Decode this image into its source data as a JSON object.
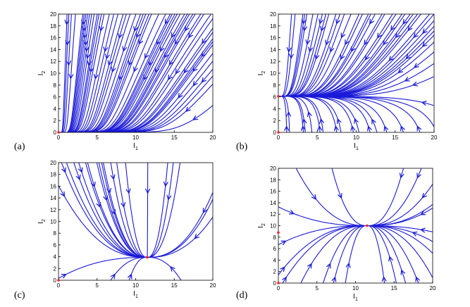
{
  "figure": {
    "panels": [
      {
        "tag": "(a)"
      },
      {
        "tag": "(b)"
      },
      {
        "tag": "(c)"
      },
      {
        "tag": "(d)"
      }
    ]
  },
  "colors": {
    "streamline": "#1a1ad8",
    "equilibrium": "#ff2020",
    "axis": "#000000"
  },
  "chart_data": [
    {
      "type": "streamplot",
      "panel": "(a)",
      "xlabel": "I1",
      "ylabel": "I2",
      "xlim": [
        0,
        20
      ],
      "ylim": [
        0,
        20
      ],
      "xticks": [
        0,
        5,
        10,
        15,
        20
      ],
      "yticks": [
        0,
        2,
        4,
        6,
        8,
        10,
        12,
        14,
        16,
        18,
        20
      ],
      "equilibria": [
        [
          0,
          0
        ]
      ],
      "grid": false
    },
    {
      "type": "streamplot",
      "panel": "(b)",
      "xlabel": "I1",
      "ylabel": "I2",
      "xlim": [
        0,
        20
      ],
      "ylim": [
        0,
        20
      ],
      "xticks": [
        0,
        5,
        10,
        15,
        20
      ],
      "yticks": [
        0,
        2,
        4,
        6,
        8,
        10,
        12,
        14,
        16,
        18,
        20
      ],
      "equilibria": [
        [
          0,
          6.1
        ],
        [
          0,
          0
        ]
      ],
      "grid": false
    },
    {
      "type": "streamplot",
      "panel": "(c)",
      "xlabel": "I1",
      "ylabel": "I2",
      "xlim": [
        0,
        20
      ],
      "ylim": [
        0,
        20
      ],
      "xticks": [
        0,
        5,
        10,
        15,
        20
      ],
      "yticks": [
        0,
        2,
        4,
        6,
        8,
        10,
        12,
        14,
        16,
        18,
        20
      ],
      "equilibria": [
        [
          11.5,
          3.9
        ],
        [
          0,
          0
        ]
      ],
      "grid": false
    },
    {
      "type": "streamplot",
      "panel": "(d)",
      "xlabel": "I1",
      "ylabel": "I2",
      "xlim": [
        0,
        20
      ],
      "ylim": [
        0,
        20
      ],
      "xticks": [
        0,
        5,
        10,
        15,
        20
      ],
      "yticks": [
        0,
        2,
        4,
        6,
        8,
        10,
        12,
        14,
        16,
        18,
        20
      ],
      "equilibria": [
        [
          11.5,
          10
        ],
        [
          0,
          8.8
        ],
        [
          0,
          0
        ]
      ],
      "grid": false
    }
  ]
}
